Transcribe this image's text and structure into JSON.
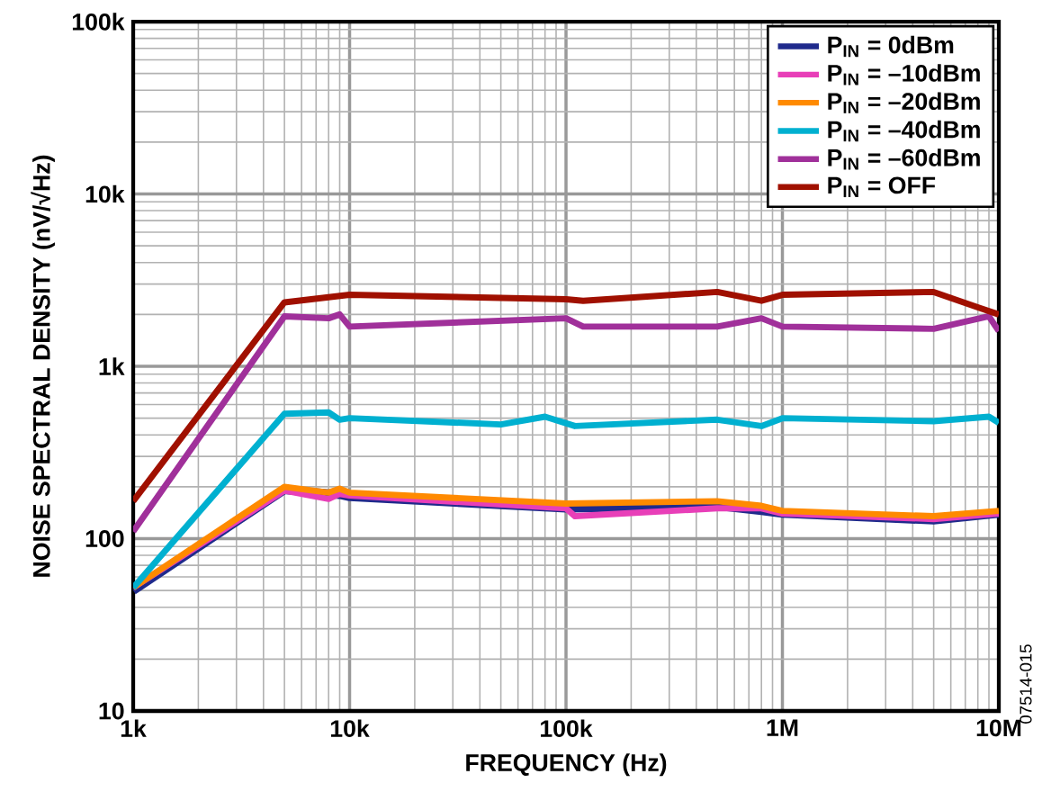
{
  "chart_data": {
    "type": "line",
    "xlabel": "FREQUENCY (Hz)",
    "ylabel": "NOISE SPECTRAL DENSITY (nV/√Hz)",
    "log": "xy",
    "grid": true,
    "legend": "top right",
    "xlim": [
      1000,
      10000000
    ],
    "ylim": [
      10,
      100000
    ],
    "xticks": [
      {
        "value": 1000,
        "label": "1k"
      },
      {
        "value": 10000,
        "label": "10k"
      },
      {
        "value": 100000,
        "label": "100k"
      },
      {
        "value": 1000000,
        "label": "1M"
      },
      {
        "value": 10000000,
        "label": "10M"
      }
    ],
    "yticks": [
      {
        "value": 10,
        "label": "10"
      },
      {
        "value": 100,
        "label": "100"
      },
      {
        "value": 1000,
        "label": "1k"
      },
      {
        "value": 10000,
        "label": "10k"
      },
      {
        "value": 100000,
        "label": "100k"
      }
    ],
    "annotations": [
      "07514-015"
    ],
    "series": [
      {
        "name": "P$_{IN}$ = 0dBm",
        "color": "#1f2a8c",
        "x": [
          1000,
          5000,
          9000,
          10000,
          100000,
          500000,
          800000,
          1000000,
          5000000,
          10000000
        ],
        "values": [
          50,
          192,
          180,
          175,
          150,
          155,
          145,
          140,
          128,
          140
        ]
      },
      {
        "name": "P$_{IN}$ = –10dBm",
        "color": "#e83fb8",
        "x": [
          1000,
          5000,
          8000,
          9000,
          10000,
          100000,
          110000,
          500000,
          800000,
          1000000,
          5000000,
          10000000
        ],
        "values": [
          52,
          190,
          170,
          182,
          178,
          150,
          135,
          150,
          150,
          140,
          130,
          140
        ]
      },
      {
        "name": "P$_{IN}$ = –20dBm",
        "color": "#ff8a00",
        "x": [
          1000,
          5000,
          8000,
          9000,
          10000,
          100000,
          500000,
          800000,
          1000000,
          5000000,
          10000000
        ],
        "values": [
          52,
          200,
          185,
          195,
          185,
          160,
          165,
          155,
          145,
          135,
          145
        ]
      },
      {
        "name": "P$_{IN}$ = –40dBm",
        "color": "#00b0d0",
        "x": [
          1000,
          5000,
          8000,
          9000,
          10000,
          50000,
          80000,
          110000,
          500000,
          800000,
          1000000,
          5000000,
          9000000,
          10000000
        ],
        "values": [
          52,
          530,
          540,
          490,
          500,
          460,
          510,
          450,
          490,
          450,
          500,
          480,
          510,
          470
        ]
      },
      {
        "name": "P$_{IN}$ = –60dBm",
        "color": "#a0309a",
        "x": [
          1000,
          5000,
          8000,
          9000,
          10000,
          100000,
          120000,
          500000,
          800000,
          1000000,
          5000000,
          9000000,
          10000000
        ],
        "values": [
          110,
          1950,
          1900,
          2000,
          1700,
          1900,
          1700,
          1700,
          1900,
          1700,
          1650,
          1950,
          1600
        ]
      },
      {
        "name": "P$_{IN}$ = OFF",
        "color": "#a01000",
        "x": [
          1000,
          5000,
          10000,
          100000,
          120000,
          500000,
          800000,
          1000000,
          5000000,
          8000000,
          10000000
        ],
        "values": [
          165,
          2350,
          2600,
          2450,
          2400,
          2700,
          2400,
          2600,
          2700,
          2200,
          2000
        ]
      }
    ]
  }
}
